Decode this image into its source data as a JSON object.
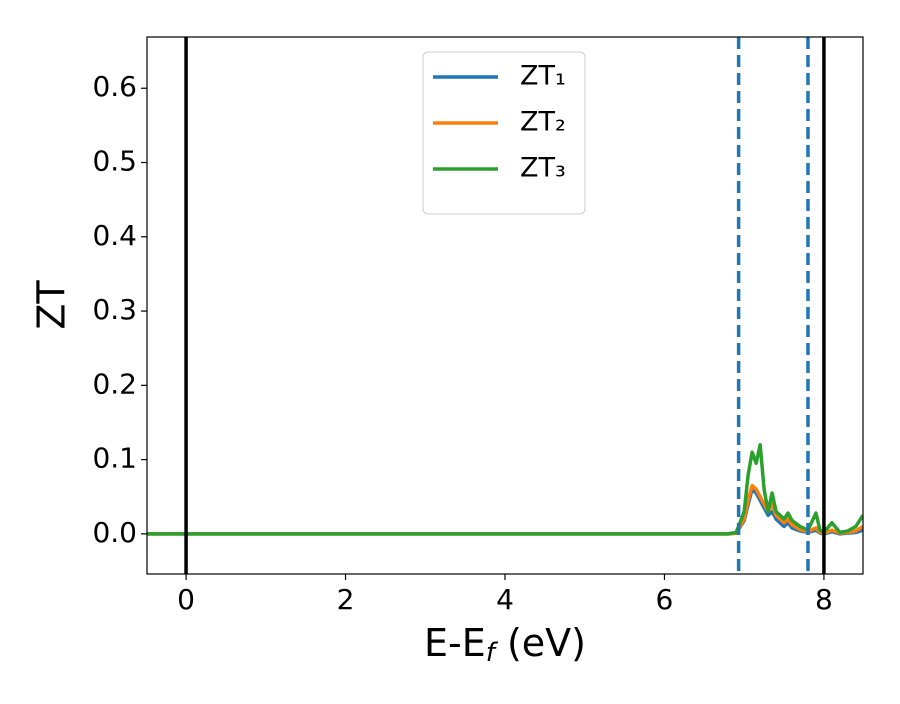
{
  "chart_data": {
    "type": "line",
    "x_label": {
      "main": "E-E",
      "sub": "f",
      "tail": " (eV)"
    },
    "y_label": "ZT",
    "x": [
      -0.49,
      6.8,
      6.9,
      7.0,
      7.05,
      7.1,
      7.15,
      7.2,
      7.25,
      7.3,
      7.35,
      7.4,
      7.5,
      7.55,
      7.6,
      7.7,
      7.8,
      7.9,
      7.95,
      8.0,
      8.1,
      8.2,
      8.3,
      8.4,
      8.49
    ],
    "series": [
      {
        "name": "ZT₁",
        "color": "#1f77b4",
        "values": [
          0,
          0,
          0.001,
          0.018,
          0.04,
          0.06,
          0.055,
          0.045,
          0.035,
          0.025,
          0.03,
          0.02,
          0.01,
          0.015,
          0.008,
          0.004,
          0.002,
          0.005,
          0.001,
          0,
          0.003,
          0,
          0.001,
          0.002,
          0.005
        ]
      },
      {
        "name": "ZT₂",
        "color": "#ff7f0e",
        "values": [
          0,
          0,
          0.001,
          0.02,
          0.045,
          0.065,
          0.06,
          0.05,
          0.04,
          0.03,
          0.04,
          0.025,
          0.015,
          0.02,
          0.012,
          0.006,
          0.003,
          0.008,
          0.002,
          0.001,
          0.005,
          0.001,
          0.002,
          0.004,
          0.01
        ]
      },
      {
        "name": "ZT₃",
        "color": "#2ca02c",
        "values": [
          0,
          0,
          0.002,
          0.03,
          0.08,
          0.11,
          0.095,
          0.12,
          0.06,
          0.03,
          0.055,
          0.03,
          0.02,
          0.028,
          0.018,
          0.01,
          0.005,
          0.028,
          0.005,
          0.002,
          0.015,
          0.002,
          0.004,
          0.01,
          0.025
        ]
      }
    ],
    "vlines": [
      {
        "x": 0,
        "color": "#000000",
        "style": "solid"
      },
      {
        "x": 8,
        "color": "#000000",
        "style": "solid"
      },
      {
        "x": 6.93,
        "color": "#1f77b4",
        "style": "dashed"
      },
      {
        "x": 7.8,
        "color": "#1f77b4",
        "style": "dashed"
      }
    ],
    "xlim": [
      -0.49,
      8.49
    ],
    "ylim": [
      -0.054,
      0.669
    ],
    "xticks": [
      0,
      2,
      4,
      6,
      8
    ],
    "yticks": [
      {
        "value": 0,
        "label": "0.0"
      },
      0.1,
      0.2,
      0.3,
      0.4,
      0.5,
      0.6
    ],
    "legend": "upper center",
    "grid": false
  }
}
